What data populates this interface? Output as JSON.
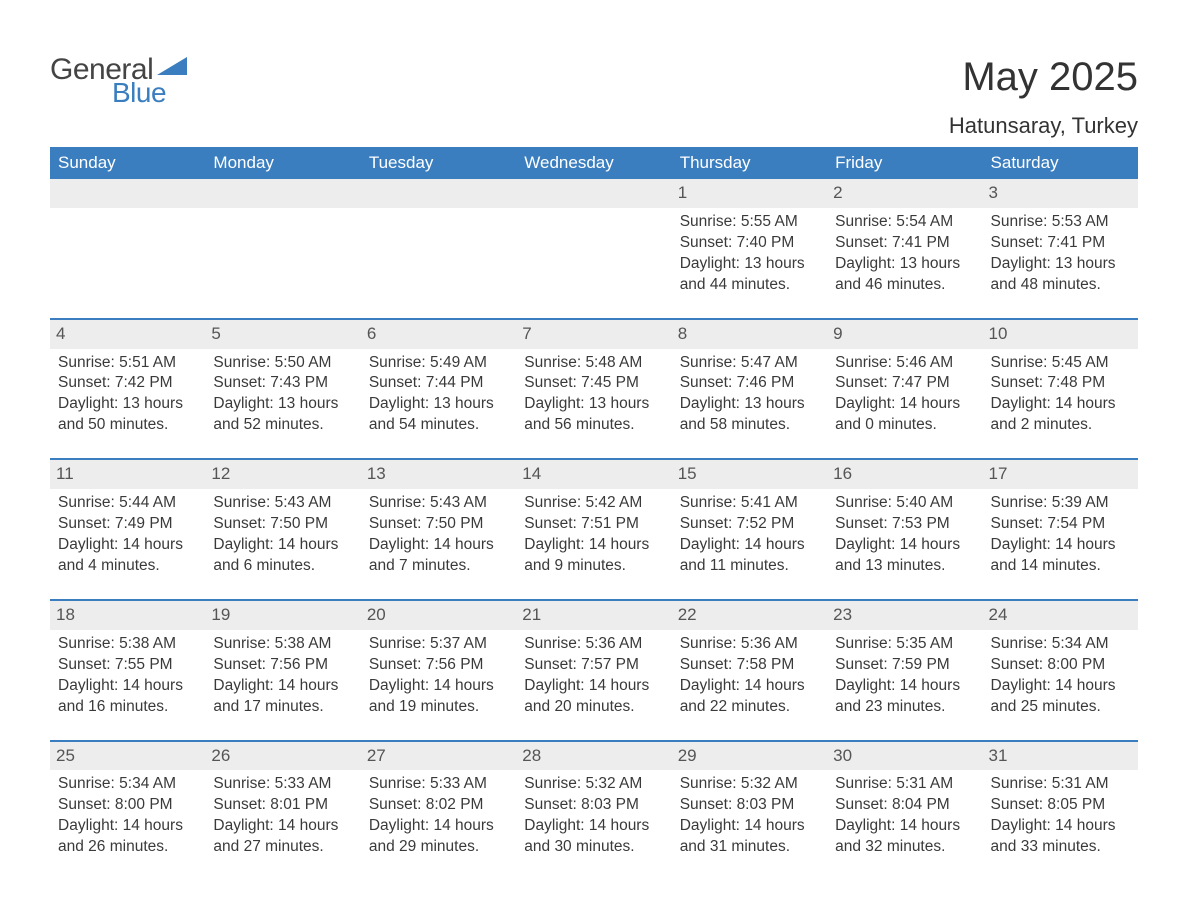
{
  "logo": {
    "word1": "General",
    "word2": "Blue"
  },
  "title": "May 2025",
  "location": "Hatunsaray, Turkey",
  "colors": {
    "accent": "#3a7ebf",
    "header_bg": "#3a7ebf",
    "header_text": "#ffffff",
    "daynum_bg": "#ededed",
    "body_text": "#3a3a3a",
    "page_bg": "#ffffff"
  },
  "weekdays": [
    "Sunday",
    "Monday",
    "Tuesday",
    "Wednesday",
    "Thursday",
    "Friday",
    "Saturday"
  ],
  "weeks": [
    [
      null,
      null,
      null,
      null,
      {
        "n": "1",
        "sunrise": "5:55 AM",
        "sunset": "7:40 PM",
        "dlh": "13",
        "dlm": "44"
      },
      {
        "n": "2",
        "sunrise": "5:54 AM",
        "sunset": "7:41 PM",
        "dlh": "13",
        "dlm": "46"
      },
      {
        "n": "3",
        "sunrise": "5:53 AM",
        "sunset": "7:41 PM",
        "dlh": "13",
        "dlm": "48"
      }
    ],
    [
      {
        "n": "4",
        "sunrise": "5:51 AM",
        "sunset": "7:42 PM",
        "dlh": "13",
        "dlm": "50"
      },
      {
        "n": "5",
        "sunrise": "5:50 AM",
        "sunset": "7:43 PM",
        "dlh": "13",
        "dlm": "52"
      },
      {
        "n": "6",
        "sunrise": "5:49 AM",
        "sunset": "7:44 PM",
        "dlh": "13",
        "dlm": "54"
      },
      {
        "n": "7",
        "sunrise": "5:48 AM",
        "sunset": "7:45 PM",
        "dlh": "13",
        "dlm": "56"
      },
      {
        "n": "8",
        "sunrise": "5:47 AM",
        "sunset": "7:46 PM",
        "dlh": "13",
        "dlm": "58"
      },
      {
        "n": "9",
        "sunrise": "5:46 AM",
        "sunset": "7:47 PM",
        "dlh": "14",
        "dlm": "0"
      },
      {
        "n": "10",
        "sunrise": "5:45 AM",
        "sunset": "7:48 PM",
        "dlh": "14",
        "dlm": "2"
      }
    ],
    [
      {
        "n": "11",
        "sunrise": "5:44 AM",
        "sunset": "7:49 PM",
        "dlh": "14",
        "dlm": "4"
      },
      {
        "n": "12",
        "sunrise": "5:43 AM",
        "sunset": "7:50 PM",
        "dlh": "14",
        "dlm": "6"
      },
      {
        "n": "13",
        "sunrise": "5:43 AM",
        "sunset": "7:50 PM",
        "dlh": "14",
        "dlm": "7"
      },
      {
        "n": "14",
        "sunrise": "5:42 AM",
        "sunset": "7:51 PM",
        "dlh": "14",
        "dlm": "9"
      },
      {
        "n": "15",
        "sunrise": "5:41 AM",
        "sunset": "7:52 PM",
        "dlh": "14",
        "dlm": "11"
      },
      {
        "n": "16",
        "sunrise": "5:40 AM",
        "sunset": "7:53 PM",
        "dlh": "14",
        "dlm": "13"
      },
      {
        "n": "17",
        "sunrise": "5:39 AM",
        "sunset": "7:54 PM",
        "dlh": "14",
        "dlm": "14"
      }
    ],
    [
      {
        "n": "18",
        "sunrise": "5:38 AM",
        "sunset": "7:55 PM",
        "dlh": "14",
        "dlm": "16"
      },
      {
        "n": "19",
        "sunrise": "5:38 AM",
        "sunset": "7:56 PM",
        "dlh": "14",
        "dlm": "17"
      },
      {
        "n": "20",
        "sunrise": "5:37 AM",
        "sunset": "7:56 PM",
        "dlh": "14",
        "dlm": "19"
      },
      {
        "n": "21",
        "sunrise": "5:36 AM",
        "sunset": "7:57 PM",
        "dlh": "14",
        "dlm": "20"
      },
      {
        "n": "22",
        "sunrise": "5:36 AM",
        "sunset": "7:58 PM",
        "dlh": "14",
        "dlm": "22"
      },
      {
        "n": "23",
        "sunrise": "5:35 AM",
        "sunset": "7:59 PM",
        "dlh": "14",
        "dlm": "23"
      },
      {
        "n": "24",
        "sunrise": "5:34 AM",
        "sunset": "8:00 PM",
        "dlh": "14",
        "dlm": "25"
      }
    ],
    [
      {
        "n": "25",
        "sunrise": "5:34 AM",
        "sunset": "8:00 PM",
        "dlh": "14",
        "dlm": "26"
      },
      {
        "n": "26",
        "sunrise": "5:33 AM",
        "sunset": "8:01 PM",
        "dlh": "14",
        "dlm": "27"
      },
      {
        "n": "27",
        "sunrise": "5:33 AM",
        "sunset": "8:02 PM",
        "dlh": "14",
        "dlm": "29"
      },
      {
        "n": "28",
        "sunrise": "5:32 AM",
        "sunset": "8:03 PM",
        "dlh": "14",
        "dlm": "30"
      },
      {
        "n": "29",
        "sunrise": "5:32 AM",
        "sunset": "8:03 PM",
        "dlh": "14",
        "dlm": "31"
      },
      {
        "n": "30",
        "sunrise": "5:31 AM",
        "sunset": "8:04 PM",
        "dlh": "14",
        "dlm": "32"
      },
      {
        "n": "31",
        "sunrise": "5:31 AM",
        "sunset": "8:05 PM",
        "dlh": "14",
        "dlm": "33"
      }
    ]
  ],
  "labels": {
    "sunrise": "Sunrise: ",
    "sunset": "Sunset: ",
    "daylight_a": "Daylight: ",
    "daylight_b": " hours and ",
    "daylight_c": " minutes."
  }
}
